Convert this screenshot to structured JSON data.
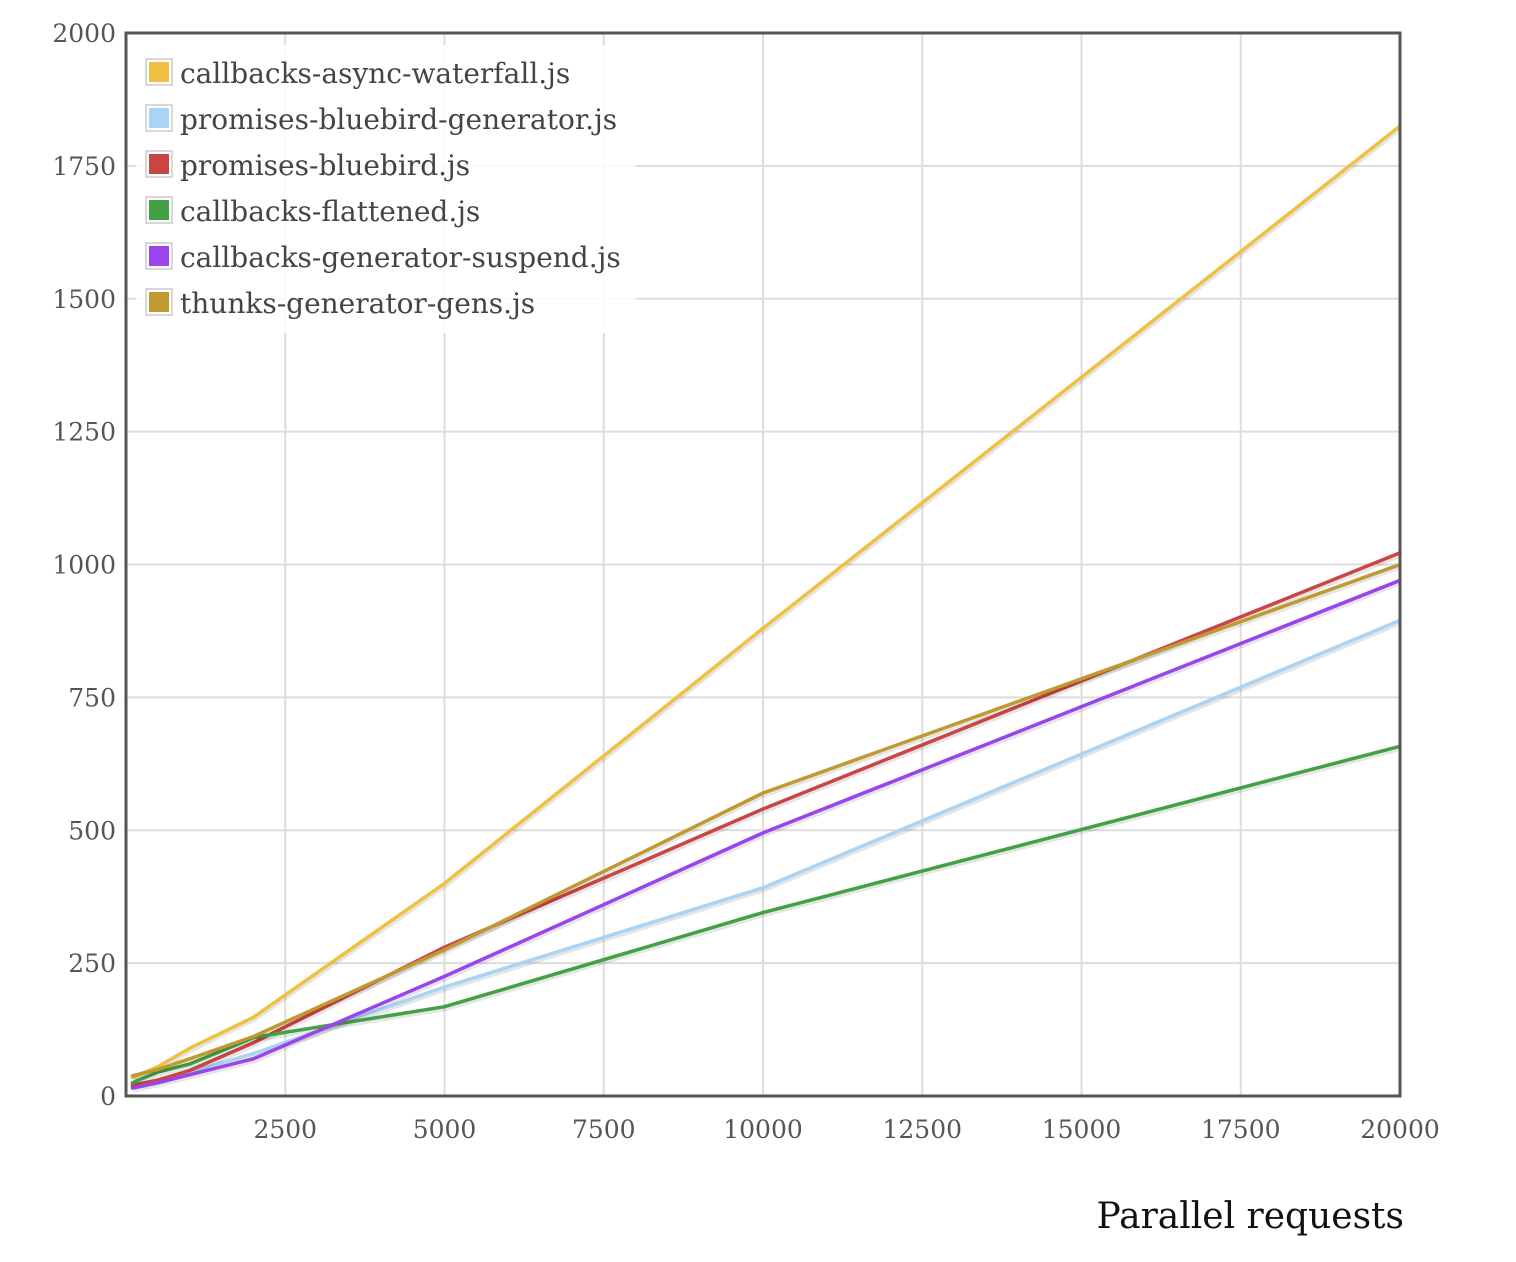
{
  "chart_data": {
    "type": "line",
    "title": "",
    "xlabel": "Parallel requests",
    "ylabel": "",
    "xlim": [
      0,
      20000
    ],
    "ylim": [
      0,
      2000
    ],
    "x_ticks": [
      2500,
      5000,
      7500,
      10000,
      12500,
      15000,
      17500,
      20000
    ],
    "y_ticks": [
      0,
      250,
      500,
      750,
      1000,
      1250,
      1500,
      1750,
      2000
    ],
    "grid": true,
    "legend_position": "top-left",
    "series": [
      {
        "name": "callbacks-async-waterfall.js",
        "color": "#f0c040",
        "points": [
          [
            100,
            35
          ],
          [
            500,
            55
          ],
          [
            1000,
            90
          ],
          [
            2000,
            148
          ],
          [
            5000,
            400
          ],
          [
            10000,
            880
          ],
          [
            20000,
            1825
          ]
        ]
      },
      {
        "name": "promises-bluebird-generator.js",
        "color": "#aad4f5",
        "points": [
          [
            100,
            20
          ],
          [
            500,
            30
          ],
          [
            1000,
            45
          ],
          [
            2000,
            80
          ],
          [
            5000,
            205
          ],
          [
            10000,
            392
          ],
          [
            20000,
            895
          ]
        ]
      },
      {
        "name": "promises-bluebird.js",
        "color": "#cc4444",
        "points": [
          [
            100,
            20
          ],
          [
            500,
            30
          ],
          [
            1000,
            48
          ],
          [
            2000,
            100
          ],
          [
            5000,
            280
          ],
          [
            10000,
            540
          ],
          [
            20000,
            1022
          ]
        ]
      },
      {
        "name": "callbacks-flattened.js",
        "color": "#44a044",
        "points": [
          [
            100,
            25
          ],
          [
            500,
            45
          ],
          [
            1000,
            60
          ],
          [
            2000,
            110
          ],
          [
            5000,
            168
          ],
          [
            10000,
            345
          ],
          [
            20000,
            658
          ]
        ]
      },
      {
        "name": "callbacks-generator-suspend.js",
        "color": "#9944ee",
        "points": [
          [
            100,
            15
          ],
          [
            500,
            25
          ],
          [
            1000,
            40
          ],
          [
            2000,
            70
          ],
          [
            5000,
            225
          ],
          [
            10000,
            495
          ],
          [
            20000,
            970
          ]
        ]
      },
      {
        "name": "thunks-generator-gens.js",
        "color": "#c09a30",
        "points": [
          [
            100,
            38
          ],
          [
            500,
            50
          ],
          [
            1000,
            70
          ],
          [
            2000,
            112
          ],
          [
            5000,
            275
          ],
          [
            10000,
            570
          ],
          [
            20000,
            1000
          ]
        ]
      }
    ]
  }
}
